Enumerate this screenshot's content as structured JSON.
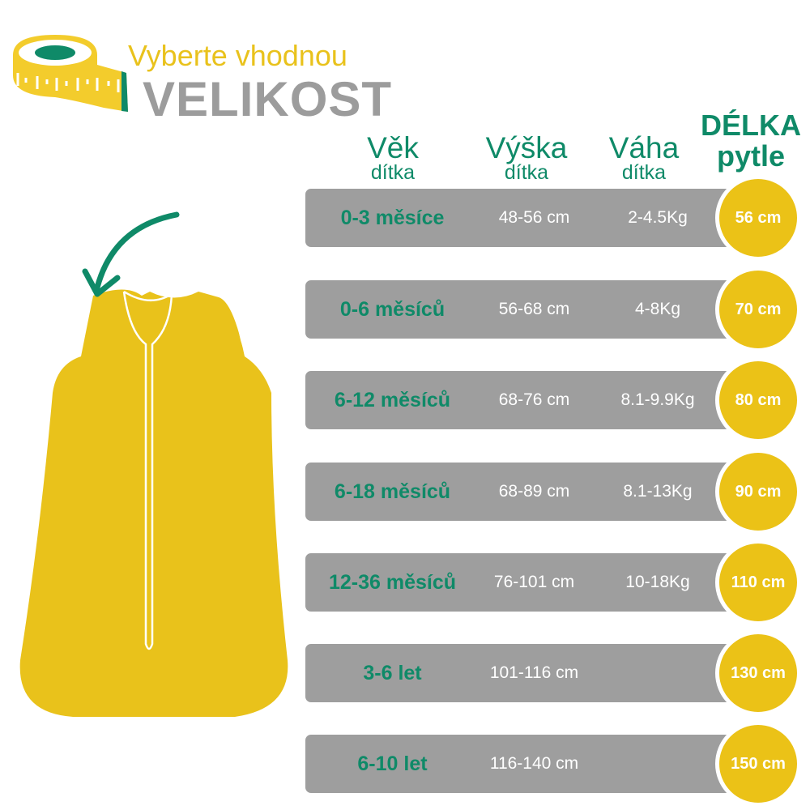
{
  "header": {
    "subtitle": "Vyberte vhodnou",
    "title": "VELIKOST"
  },
  "columns": {
    "age": {
      "label": "Věk",
      "sub": "dítka"
    },
    "height": {
      "label": "Výška",
      "sub": "dítka"
    },
    "weight": {
      "label": "Váha",
      "sub": "dítka"
    },
    "length": {
      "label": "DÉLKA",
      "sub": "pytle"
    }
  },
  "rows": [
    {
      "age": "0-3 měsíce",
      "height": "48-56 cm",
      "weight": "2-4.5Kg",
      "length": "56 cm"
    },
    {
      "age": "0-6 měsíců",
      "height": "56-68 cm",
      "weight": "4-8Kg",
      "length": "70 cm"
    },
    {
      "age": "6-12 měsíců",
      "height": "68-76 cm",
      "weight": "8.1-9.9Kg",
      "length": "80 cm"
    },
    {
      "age": "6-18 měsíců",
      "height": "68-89 cm",
      "weight": "8.1-13Kg",
      "length": "90 cm"
    },
    {
      "age": "12-36 měsíců",
      "height": "76-101 cm",
      "weight": "10-18Kg",
      "length": "110 cm"
    },
    {
      "age": "3-6 let",
      "height": "101-116 cm",
      "weight": "",
      "length": "130 cm"
    },
    {
      "age": "6-10 let",
      "height": "116-140 cm",
      "weight": "",
      "length": "150 cm"
    }
  ],
  "colors": {
    "green": "#0f8a68",
    "yellow": "#ebc217",
    "gray": "#9e9e9e"
  },
  "icons": [
    "measuring-tape-icon",
    "arrow-icon",
    "sleeping-bag-illustration"
  ]
}
